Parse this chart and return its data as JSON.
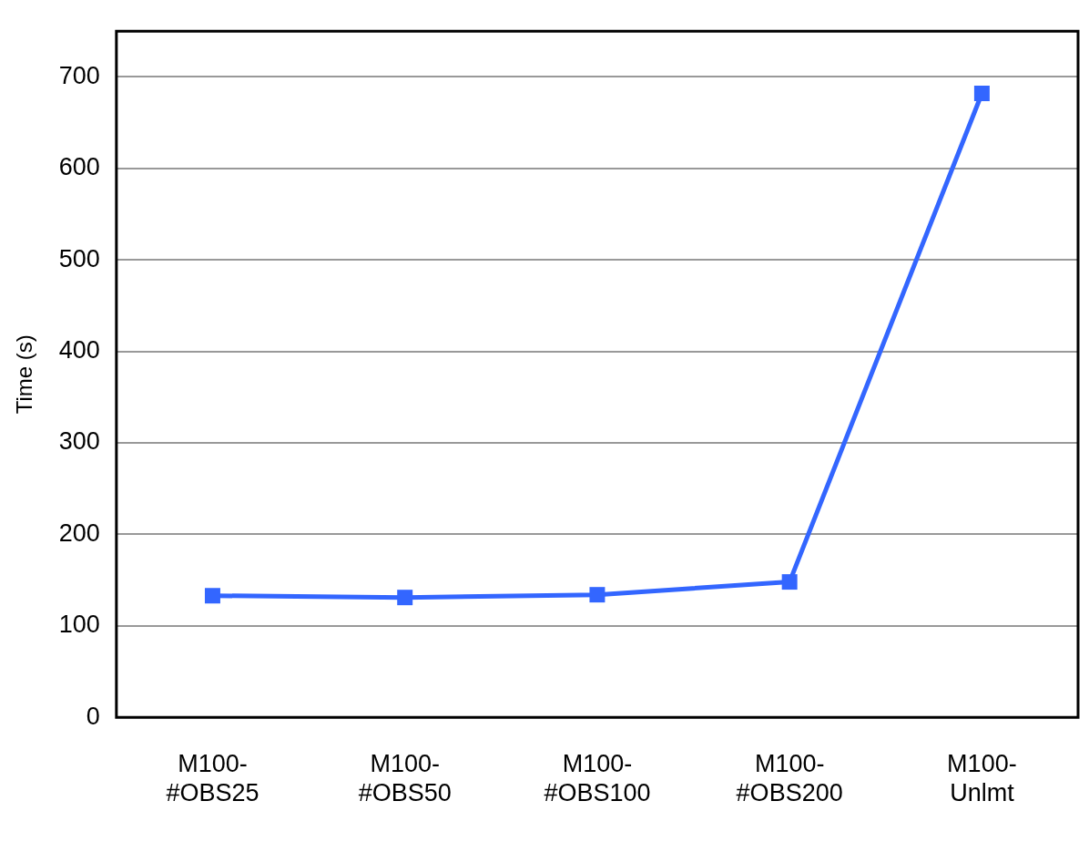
{
  "chart_data": {
    "type": "line",
    "ylabel": "Time (s)",
    "categories": [
      "M100-#OBS25",
      "M100-#OBS50",
      "M100-#OBS100",
      "M100-#OBS200",
      "M100-Unlmt"
    ],
    "series": [
      {
        "color": "#3366ff",
        "values": [
          133,
          131,
          134,
          148,
          682
        ]
      }
    ],
    "ylim": [
      0,
      750
    ],
    "yticks": [
      0,
      100,
      200,
      300,
      400,
      500,
      600,
      700
    ],
    "grid": "y",
    "legend": false,
    "marker": "square",
    "line_style": "solid"
  }
}
